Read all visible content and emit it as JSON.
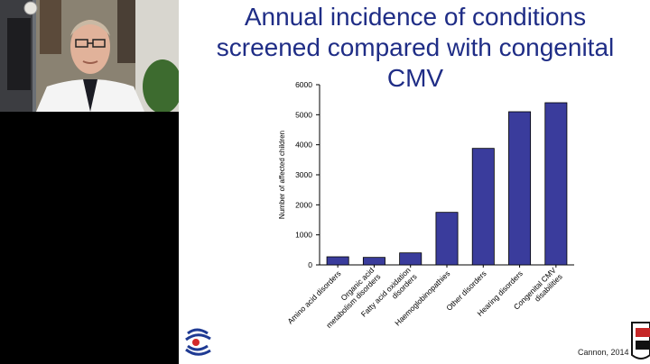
{
  "slide": {
    "title_lines": [
      "Annual incidence of conditions",
      "screened compared with congenital",
      "CMV"
    ],
    "citation": "Cannon, 2014"
  },
  "webcam": {
    "icons": [
      "presenter-video-icon"
    ]
  },
  "chart_data": {
    "type": "bar",
    "categories": [
      "Amino acid disorders",
      "Organic acid metabolism disorders",
      "Fatty acid oxidation disorders",
      "Haemoglobinopathies",
      "Other disorders",
      "Hearing disorders",
      "Congenital CMV disabilities"
    ],
    "category_lines": [
      [
        "Amino acid disorders"
      ],
      [
        "Organic acid",
        "metabolism disorders"
      ],
      [
        "Fatty acid oxidation",
        "disorders"
      ],
      [
        "Haemoglobinopathies"
      ],
      [
        "Other disorders"
      ],
      [
        "Hearing disorders"
      ],
      [
        "Congenital CMV",
        "disabilities"
      ]
    ],
    "values": [
      270,
      250,
      400,
      1750,
      3880,
      5100,
      5400
    ],
    "ylabel": "Number of affected children",
    "ylim": [
      0,
      6000
    ],
    "yticks": [
      0,
      1000,
      2000,
      3000,
      4000,
      5000,
      6000
    ],
    "bar_color": "#3a3c9c",
    "grid": false
  },
  "colors": {
    "title": "#1f2d86",
    "bar": "#3a3c9c",
    "logo_blue": "#1f3a93",
    "logo_red": "#d42a2a"
  }
}
